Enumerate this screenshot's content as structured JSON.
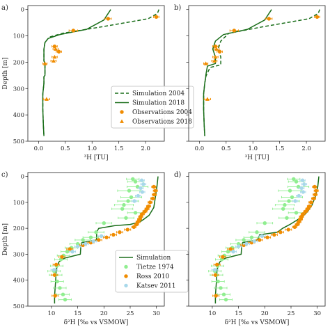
{
  "chart_data": [
    {
      "id": "a",
      "type": "scatter",
      "panel_label": "a)",
      "xlabel": "³H [TU]",
      "ylabel": "Depth [m]",
      "xlim": [
        -0.2,
        2.35
      ],
      "ylim": [
        500,
        -15
      ],
      "xticks": [
        0.0,
        0.5,
        1.0,
        1.5,
        2.0
      ],
      "xtick_labels": [
        "0.0",
        "0.5",
        "1.0",
        "1.5",
        "2.0"
      ],
      "yticks": [
        0,
        100,
        200,
        300,
        400,
        500
      ],
      "ytick_labels": [
        "0",
        "100",
        "200",
        "300",
        "400",
        "500"
      ],
      "grid": false,
      "legend_position": "right-middle",
      "legend": [
        {
          "label": "Simulation 2004",
          "style": "dashed-line"
        },
        {
          "label": "Simulation 2018",
          "style": "solid-line"
        },
        {
          "label": "Observations 2004",
          "style": "orange-circle"
        },
        {
          "label": "Observations 2018",
          "style": "orange-triangle"
        }
      ],
      "series": [
        {
          "name": "Simulation 2004",
          "style": "dashed",
          "color": "#1a6e1a",
          "x": [
            2.25,
            2.22,
            2.05,
            1.2,
            0.45,
            0.2,
            0.12,
            0.1,
            0.1,
            0.12,
            0.12,
            0.1,
            0.1,
            0.08,
            0.08,
            0.09,
            0.1
          ],
          "y": [
            0,
            15,
            35,
            65,
            90,
            105,
            125,
            150,
            195,
            205,
            250,
            255,
            280,
            320,
            380,
            440,
            480
          ]
        },
        {
          "name": "Simulation 2018",
          "style": "solid",
          "color": "#1a6e1a",
          "x": [
            1.35,
            1.3,
            1.22,
            0.9,
            0.4,
            0.18,
            0.12,
            0.1,
            0.1,
            0.12,
            0.12,
            0.1,
            0.1,
            0.08,
            0.08,
            0.09,
            0.1
          ],
          "y": [
            0,
            15,
            40,
            75,
            95,
            110,
            125,
            150,
            195,
            205,
            250,
            255,
            280,
            320,
            380,
            440,
            480
          ]
        },
        {
          "name": "Observations 2004",
          "marker": "circle",
          "color": "#f08c00",
          "x": [
            2.2,
            1.3,
            0.65,
            0.3,
            0.38
          ],
          "y": [
            28,
            35,
            80,
            140,
            160
          ],
          "xerr": [
            0.05,
            0.06,
            0.08,
            0.05,
            0.05
          ]
        },
        {
          "name": "Observations 2018",
          "marker": "triangle",
          "color": "#f08c00",
          "x": [
            0.32,
            0.3,
            0.28,
            0.12,
            0.15
          ],
          "y": [
            150,
            180,
            195,
            205,
            340
          ],
          "xerr": [
            0.05,
            0.05,
            0.05,
            0.04,
            0.06
          ]
        }
      ]
    },
    {
      "id": "b",
      "type": "scatter",
      "panel_label": "b)",
      "xlabel": "³H [TU]",
      "ylabel": "",
      "xlim": [
        -0.2,
        2.35
      ],
      "ylim": [
        500,
        -15
      ],
      "xticks": [
        0.0,
        0.5,
        1.0,
        1.5,
        2.0
      ],
      "xtick_labels": [
        "0.0",
        "0.5",
        "1.0",
        "1.5",
        "2.0"
      ],
      "yticks": [
        0,
        100,
        200,
        300,
        400,
        500
      ],
      "ytick_labels": [],
      "grid": false,
      "series": [
        {
          "name": "Simulation 2004",
          "style": "dashed",
          "color": "#1a6e1a",
          "x": [
            2.25,
            2.22,
            2.05,
            1.2,
            0.55,
            0.4,
            0.35,
            0.4,
            0.4,
            0.2,
            0.13,
            0.12,
            0.1,
            0.08,
            0.08,
            0.09,
            0.1
          ],
          "y": [
            0,
            15,
            35,
            65,
            90,
            120,
            150,
            180,
            210,
            220,
            250,
            255,
            280,
            320,
            380,
            440,
            480
          ]
        },
        {
          "name": "Simulation 2018",
          "style": "solid",
          "color": "#1a6e1a",
          "x": [
            1.35,
            1.3,
            1.22,
            0.9,
            0.45,
            0.3,
            0.25,
            0.3,
            0.3,
            0.15,
            0.12,
            0.12,
            0.1,
            0.08,
            0.08,
            0.09,
            0.1
          ],
          "y": [
            0,
            15,
            40,
            75,
            95,
            120,
            150,
            180,
            205,
            215,
            250,
            255,
            280,
            320,
            380,
            440,
            480
          ]
        },
        {
          "name": "Observations 2004",
          "marker": "circle",
          "color": "#f08c00",
          "x": [
            2.2,
            1.3,
            0.65,
            0.3,
            0.38
          ],
          "y": [
            28,
            35,
            80,
            140,
            160
          ],
          "xerr": [
            0.05,
            0.06,
            0.08,
            0.05,
            0.05
          ]
        },
        {
          "name": "Observations 2018",
          "marker": "triangle",
          "color": "#f08c00",
          "x": [
            0.32,
            0.3,
            0.28,
            0.12,
            0.15
          ],
          "y": [
            150,
            180,
            195,
            205,
            340
          ],
          "xerr": [
            0.05,
            0.05,
            0.05,
            0.04,
            0.06
          ]
        }
      ]
    },
    {
      "id": "c",
      "type": "scatter",
      "panel_label": "c)",
      "xlabel": "δ²H [‰ vs VSMOW]",
      "ylabel": "Depth [m]",
      "xlim": [
        5.5,
        31.5
      ],
      "ylim": [
        500,
        -15
      ],
      "xticks": [
        10,
        15,
        20,
        25,
        30
      ],
      "xtick_labels": [
        "10",
        "15",
        "20",
        "25",
        "30"
      ],
      "yticks": [
        0,
        100,
        200,
        300,
        400,
        500
      ],
      "ytick_labels": [
        "0",
        "100",
        "200",
        "300",
        "400",
        "500"
      ],
      "grid": false,
      "legend_position": "right-lower",
      "legend": [
        {
          "label": "Simulation",
          "style": "solid-line"
        },
        {
          "label": "Tietze 1974",
          "style": "lightgreen-circle"
        },
        {
          "label": "Ross 2010",
          "style": "orange-circle"
        },
        {
          "label": "Katsev 2011",
          "style": "lightblue-circle"
        }
      ],
      "series": [
        {
          "name": "Simulation",
          "style": "solid",
          "color": "#1a6e1a",
          "x": [
            30.3,
            30.1,
            29.8,
            29.5,
            28.6,
            27.6,
            26.9,
            25.0,
            22.0,
            19.0,
            18.6,
            18.6,
            15.8,
            15.6,
            15.5,
            12.5,
            11.4,
            10.9,
            10.8,
            10.7,
            10.6,
            10.6
          ],
          "y": [
            0,
            40,
            80,
            120,
            150,
            165,
            175,
            185,
            190,
            200,
            215,
            245,
            255,
            270,
            300,
            315,
            330,
            360,
            400,
            430,
            460,
            490
          ]
        },
        {
          "name": "Tietze 1974",
          "marker": "circle",
          "color": "#90ee90",
          "x": [
            25.5,
            26.0,
            26.4,
            24.8,
            25.2,
            24.6,
            23.8,
            23.5,
            26.0,
            24.2,
            20.0,
            18.5,
            17.5,
            16.0,
            15.0,
            13.8,
            13.0,
            12.3,
            11.8,
            11.0,
            10.5,
            10.8,
            11.1,
            11.6,
            12.2,
            12.6
          ],
          "y": [
            10,
            20,
            40,
            55,
            80,
            95,
            110,
            125,
            140,
            160,
            180,
            215,
            235,
            245,
            260,
            275,
            290,
            305,
            320,
            345,
            365,
            380,
            405,
            430,
            455,
            475
          ],
          "xerr": [
            1.2,
            1.5,
            2.0,
            2.2,
            2.0,
            2.0,
            1.8,
            2.0,
            1.5,
            1.5,
            1.5,
            1.5,
            1.5,
            1.5,
            1.5,
            1.2,
            1.2,
            1.2,
            1.2,
            1.2,
            1.2,
            1.2,
            1.2,
            1.2,
            1.2,
            1.2
          ]
        },
        {
          "name": "Ross 2010",
          "marker": "circle",
          "color": "#f08c00",
          "x": [
            29.5,
            29.8,
            29.6,
            29.3,
            28.8,
            28.5,
            28.2,
            27.8,
            27.3,
            27.0,
            26.8,
            26.5,
            26.2,
            25.7,
            24.5,
            23.0,
            21.8,
            20.5,
            19.0,
            17.5,
            16.0,
            13.5,
            12.0,
            10.9,
            10.6,
            10.7
          ],
          "y": [
            40,
            55,
            70,
            85,
            100,
            115,
            125,
            135,
            145,
            155,
            165,
            175,
            185,
            195,
            205,
            215,
            225,
            235,
            245,
            255,
            265,
            280,
            310,
            340,
            380,
            460
          ],
          "xerr": [
            0.4,
            0.4,
            0.4,
            0.4,
            0.4,
            0.4,
            0.4,
            0.4,
            0.4,
            0.4,
            0.4,
            0.4,
            0.4,
            0.4,
            0.6,
            0.6,
            0.6,
            0.6,
            0.6,
            0.6,
            0.6,
            0.6,
            0.6,
            0.6,
            0.6,
            0.6
          ]
        },
        {
          "name": "Katsev 2011",
          "marker": "circle",
          "color": "#a8d8ea",
          "x": [
            27.2,
            27.5,
            27.0,
            27.3,
            26.5,
            25.8,
            19.5,
            18.0,
            16.5,
            15.0,
            14.0,
            10.5
          ],
          "y": [
            15,
            30,
            45,
            60,
            75,
            95,
            230,
            250,
            260,
            270,
            290,
            360
          ],
          "xerr": [
            0.5,
            0.5,
            0.5,
            0.5,
            0.5,
            0.5,
            0.6,
            0.6,
            0.6,
            0.6,
            0.6,
            0.6
          ]
        }
      ]
    },
    {
      "id": "d",
      "type": "scatter",
      "panel_label": "d)",
      "xlabel": "δ²H [‰ vs VSMOW]",
      "ylabel": "",
      "xlim": [
        5.5,
        31.5
      ],
      "ylim": [
        500,
        -15
      ],
      "xticks": [
        10,
        15,
        20,
        25,
        30
      ],
      "xtick_labels": [
        "10",
        "15",
        "20",
        "25",
        "30"
      ],
      "yticks": [
        0,
        100,
        200,
        300,
        400,
        500
      ],
      "ytick_labels": [],
      "grid": false,
      "series": [
        {
          "name": "Simulation",
          "style": "solid",
          "color": "#1a6e1a",
          "x": [
            30.3,
            30.1,
            29.6,
            29.0,
            28.2,
            27.2,
            26.0,
            24.8,
            23.4,
            22.4,
            19.0,
            18.6,
            15.8,
            15.6,
            15.5,
            12.5,
            11.4,
            10.9,
            10.8,
            10.7,
            10.6,
            10.6
          ],
          "y": [
            0,
            40,
            80,
            110,
            135,
            155,
            170,
            185,
            200,
            215,
            225,
            245,
            255,
            270,
            300,
            315,
            330,
            360,
            400,
            430,
            460,
            490
          ]
        },
        {
          "name": "Tietze 1974",
          "marker": "circle",
          "color": "#90ee90",
          "x": [
            25.5,
            26.0,
            26.4,
            24.8,
            25.2,
            24.6,
            23.8,
            23.5,
            26.0,
            24.2,
            20.0,
            18.5,
            17.5,
            16.0,
            15.0,
            13.8,
            13.0,
            12.3,
            11.8,
            11.0,
            10.5,
            10.8,
            11.1,
            11.6,
            12.2,
            12.6
          ],
          "y": [
            10,
            20,
            40,
            55,
            80,
            95,
            110,
            125,
            140,
            160,
            180,
            215,
            235,
            245,
            260,
            275,
            290,
            305,
            320,
            345,
            365,
            380,
            405,
            430,
            455,
            475
          ],
          "xerr": [
            1.2,
            1.5,
            2.0,
            2.2,
            2.0,
            2.0,
            1.8,
            2.0,
            1.5,
            1.5,
            1.5,
            1.5,
            1.5,
            1.5,
            1.5,
            1.2,
            1.2,
            1.2,
            1.2,
            1.2,
            1.2,
            1.2,
            1.2,
            1.2,
            1.2,
            1.2
          ]
        },
        {
          "name": "Ross 2010",
          "marker": "circle",
          "color": "#f08c00",
          "x": [
            29.5,
            29.8,
            29.6,
            29.3,
            28.8,
            28.5,
            28.2,
            27.8,
            27.3,
            27.0,
            26.8,
            26.5,
            26.2,
            25.7,
            24.5,
            23.0,
            21.8,
            20.5,
            19.0,
            17.5,
            16.0,
            13.5,
            12.0,
            10.9,
            10.6,
            10.7
          ],
          "y": [
            40,
            55,
            70,
            85,
            100,
            115,
            125,
            135,
            145,
            155,
            165,
            175,
            185,
            195,
            205,
            215,
            225,
            235,
            245,
            255,
            265,
            280,
            310,
            340,
            380,
            460
          ],
          "xerr": [
            0.4,
            0.4,
            0.4,
            0.4,
            0.4,
            0.4,
            0.4,
            0.4,
            0.4,
            0.4,
            0.4,
            0.4,
            0.4,
            0.4,
            0.6,
            0.6,
            0.6,
            0.6,
            0.6,
            0.6,
            0.6,
            0.6,
            0.6,
            0.6,
            0.6,
            0.6
          ]
        },
        {
          "name": "Katsev 2011",
          "marker": "circle",
          "color": "#a8d8ea",
          "x": [
            27.2,
            27.5,
            27.0,
            27.3,
            26.5,
            25.8,
            19.5,
            18.0,
            16.5,
            15.0,
            14.0,
            10.5
          ],
          "y": [
            15,
            30,
            45,
            60,
            75,
            95,
            230,
            250,
            260,
            270,
            290,
            360
          ],
          "xerr": [
            0.5,
            0.5,
            0.5,
            0.5,
            0.5,
            0.5,
            0.6,
            0.6,
            0.6,
            0.6,
            0.6,
            0.6
          ]
        }
      ]
    }
  ]
}
